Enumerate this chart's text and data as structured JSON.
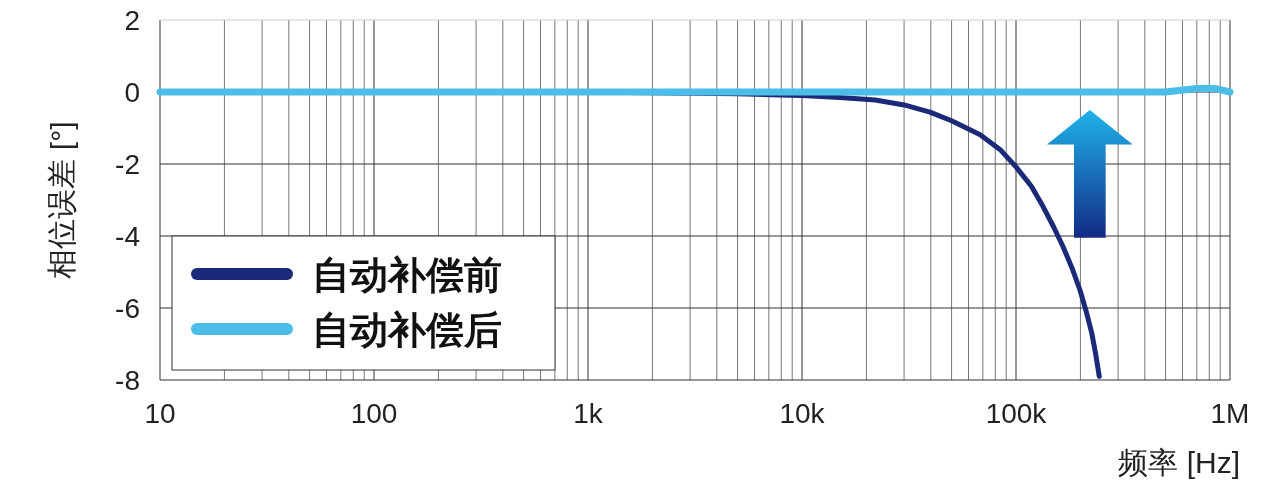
{
  "chart_data": {
    "type": "line",
    "xlabel": "频率 [Hz]",
    "ylabel": "相位误差 [°]",
    "log": "x",
    "grid": true,
    "legend": "bottom left",
    "marker": "none",
    "line_style": "solid",
    "xlim": [
      10,
      1000000
    ],
    "ylim": [
      -8,
      2
    ],
    "yticks": [
      -8,
      -6,
      -4,
      -2,
      0,
      2
    ],
    "xticks": [
      {
        "value": 10,
        "label": "10"
      },
      {
        "value": 20,
        "label": null
      },
      {
        "value": 30,
        "label": null
      },
      {
        "value": 40,
        "label": null
      },
      {
        "value": 50,
        "label": null
      },
      {
        "value": 60,
        "label": null
      },
      {
        "value": 70,
        "label": null
      },
      {
        "value": 80,
        "label": null
      },
      {
        "value": 90,
        "label": null
      },
      {
        "value": 100,
        "label": "100"
      },
      {
        "value": 200,
        "label": null
      },
      {
        "value": 300,
        "label": null
      },
      {
        "value": 400,
        "label": null
      },
      {
        "value": 500,
        "label": null
      },
      {
        "value": 600,
        "label": null
      },
      {
        "value": 700,
        "label": null
      },
      {
        "value": 800,
        "label": null
      },
      {
        "value": 900,
        "label": null
      },
      {
        "value": 1000,
        "label": "1k"
      },
      {
        "value": 2000,
        "label": null
      },
      {
        "value": 3000,
        "label": null
      },
      {
        "value": 4000,
        "label": null
      },
      {
        "value": 5000,
        "label": null
      },
      {
        "value": 6000,
        "label": null
      },
      {
        "value": 7000,
        "label": null
      },
      {
        "value": 8000,
        "label": null
      },
      {
        "value": 9000,
        "label": null
      },
      {
        "value": 10000,
        "label": "10k"
      },
      {
        "value": 20000,
        "label": null
      },
      {
        "value": 30000,
        "label": null
      },
      {
        "value": 40000,
        "label": null
      },
      {
        "value": 50000,
        "label": null
      },
      {
        "value": 60000,
        "label": null
      },
      {
        "value": 70000,
        "label": null
      },
      {
        "value": 80000,
        "label": null
      },
      {
        "value": 90000,
        "label": null
      },
      {
        "value": 100000,
        "label": "100k"
      },
      {
        "value": 200000,
        "label": null
      },
      {
        "value": 300000,
        "label": null
      },
      {
        "value": 400000,
        "label": null
      },
      {
        "value": 500000,
        "label": null
      },
      {
        "value": 600000,
        "label": null
      },
      {
        "value": 700000,
        "label": null
      },
      {
        "value": 800000,
        "label": null
      },
      {
        "value": 900000,
        "label": null
      },
      {
        "value": 1000000,
        "label": "1M"
      }
    ],
    "series": [
      {
        "name": "自动补偿前",
        "color": "#1b2a78",
        "x": [
          250,
          1000,
          5000,
          7900,
          10000,
          15000,
          22000,
          30000,
          39600,
          50000,
          68000,
          85000,
          100000,
          118000,
          134000,
          150000,
          166000,
          183000,
          199000,
          213000,
          226000,
          236000,
          245000
        ],
        "values": [
          0,
          0,
          -0.05,
          -0.08,
          -0.1,
          -0.15,
          -0.22,
          -0.36,
          -0.56,
          -0.8,
          -1.19,
          -1.62,
          -2.08,
          -2.62,
          -3.19,
          -3.75,
          -4.3,
          -4.9,
          -5.5,
          -6.1,
          -6.7,
          -7.3,
          -7.9
        ]
      },
      {
        "name": "自动补偿后",
        "color": "#4bbde8",
        "x": [
          10,
          250,
          1000,
          10000,
          100000,
          500000,
          700000,
          850000,
          1000000
        ],
        "values": [
          0,
          0,
          0,
          0,
          0,
          0,
          0.1,
          0.1,
          0
        ]
      }
    ]
  }
}
